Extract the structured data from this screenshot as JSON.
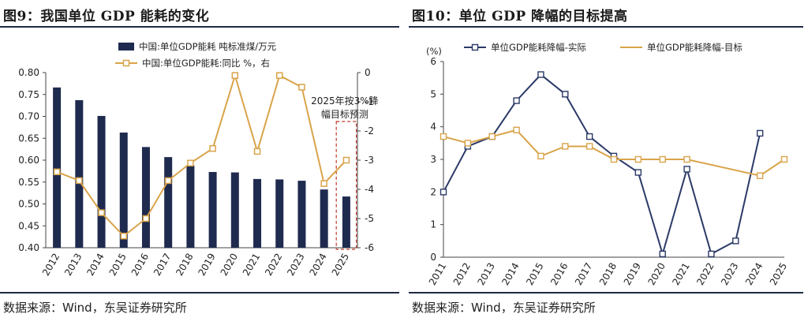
{
  "left": {
    "title": "图9：我国单位 GDP 能耗的变化",
    "source": "数据来源：Wind，东吴证券研究所",
    "annotation": [
      "2025年按3%降",
      "幅目标预测"
    ],
    "chart_data": {
      "type": "bar",
      "categories": [
        "2012",
        "2013",
        "2014",
        "2015",
        "2016",
        "2017",
        "2018",
        "2019",
        "2020",
        "2021",
        "2022",
        "2023",
        "2024",
        "2025"
      ],
      "series": [
        {
          "name": "中国:单位GDP能耗  吨标准煤/万元",
          "type": "bar",
          "axis": "left",
          "color": "#1f2a4f",
          "values": [
            0.766,
            0.737,
            0.701,
            0.663,
            0.63,
            0.607,
            0.588,
            0.573,
            0.572,
            0.557,
            0.556,
            0.553,
            0.533,
            0.517
          ]
        },
        {
          "name": "中国:单位GDP能耗:同比 %，右",
          "type": "line",
          "axis": "right",
          "color": "#d9a44a",
          "values": [
            -3.4,
            -3.7,
            -4.8,
            -5.6,
            -5.0,
            -3.7,
            -3.1,
            -2.6,
            -0.1,
            -2.7,
            -0.1,
            -0.5,
            -3.8,
            -3.0
          ]
        }
      ],
      "ylim_left": [
        0.4,
        0.8
      ],
      "yticks_left": [
        "0.40",
        "0.45",
        "0.50",
        "0.55",
        "0.60",
        "0.65",
        "0.70",
        "0.75",
        "0.80"
      ],
      "ylim_right": [
        -6,
        0
      ],
      "yticks_right": [
        "-6",
        "-5",
        "-4",
        "-3",
        "-2",
        "-1",
        "0"
      ],
      "legend": "top",
      "grid": false
    }
  },
  "right": {
    "title": "图10：单位 GDP 降幅的目标提高",
    "source": "数据来源：Wind，东吴证券研究所",
    "chart_data": {
      "type": "line",
      "ylabel": "(%)",
      "categories": [
        "2011",
        "2012",
        "2013",
        "2014",
        "2015",
        "2016",
        "2017",
        "2018",
        "2019",
        "2020",
        "2021",
        "2022",
        "2023",
        "2024",
        "2025"
      ],
      "series": [
        {
          "name": "单位GDP能耗降幅-实际",
          "color": "#2b3a67",
          "marker": "square",
          "values": [
            2.0,
            3.4,
            3.7,
            4.8,
            5.6,
            5.0,
            3.7,
            3.1,
            2.6,
            0.1,
            2.7,
            0.1,
            0.5,
            3.8,
            null
          ]
        },
        {
          "name": "单位GDP能耗降幅-目标",
          "color": "#d9a44a",
          "marker": "none",
          "values": [
            3.7,
            3.5,
            3.7,
            3.9,
            3.1,
            3.4,
            3.4,
            3.0,
            3.0,
            3.0,
            3.0,
            null,
            null,
            2.5,
            3.0
          ]
        }
      ],
      "ylim": [
        0,
        6
      ],
      "yticks": [
        "0",
        "1",
        "2",
        "3",
        "4",
        "5",
        "6"
      ],
      "legend": "top",
      "grid": false
    }
  }
}
